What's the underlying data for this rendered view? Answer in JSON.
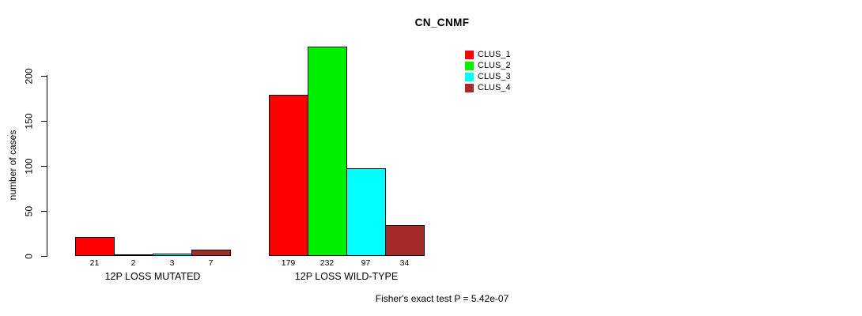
{
  "title": "CN_CNMF",
  "footer": "Fisher's exact test P = 5.42e-07",
  "chart_data": {
    "type": "bar",
    "title": "CN_CNMF",
    "xlabel": "",
    "ylabel": "number of cases",
    "categories": [
      "12P LOSS MUTATED",
      "12P LOSS WILD-TYPE"
    ],
    "series": [
      {
        "name": "CLUS_1",
        "color": "#FF0000",
        "values": [
          21,
          179
        ]
      },
      {
        "name": "CLUS_2",
        "color": "#00EE00",
        "values": [
          2,
          232
        ]
      },
      {
        "name": "CLUS_3",
        "color": "#00FFFF",
        "values": [
          3,
          97
        ]
      },
      {
        "name": "CLUS_4",
        "color": "#A52A2A",
        "values": [
          7,
          34
        ]
      }
    ],
    "yticks": [
      0,
      50,
      100,
      150,
      200
    ],
    "ylim": [
      0,
      232
    ],
    "bar_value_labels": [
      [
        "21",
        "2",
        "3",
        "7"
      ],
      [
        "179",
        "232",
        "97",
        "34"
      ]
    ],
    "grid": false,
    "legend_position": "top-right",
    "legend_entries": [
      "CLUS_1",
      "CLUS_2",
      "CLUS_3",
      "CLUS_4"
    ],
    "annotation": "Fisher's exact test P = 5.42e-07"
  },
  "colors": {
    "axis": "#000000",
    "background": "#FFFFFF",
    "text": "#000000"
  }
}
